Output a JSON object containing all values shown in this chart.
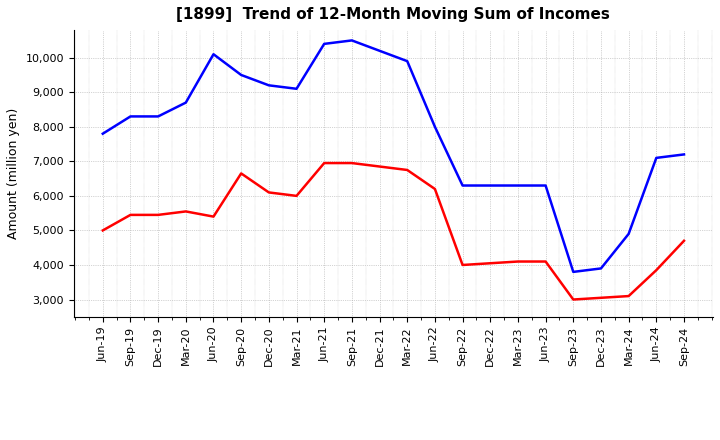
{
  "title": "[1899]  Trend of 12-Month Moving Sum of Incomes",
  "ylabel": "Amount (million yen)",
  "ylim": [
    2500,
    10800
  ],
  "yticks": [
    3000,
    4000,
    5000,
    6000,
    7000,
    8000,
    9000,
    10000
  ],
  "x_labels": [
    "Jun-19",
    "Sep-19",
    "Dec-19",
    "Mar-20",
    "Jun-20",
    "Sep-20",
    "Dec-20",
    "Mar-21",
    "Jun-21",
    "Sep-21",
    "Dec-21",
    "Mar-22",
    "Jun-22",
    "Sep-22",
    "Dec-22",
    "Mar-23",
    "Jun-23",
    "Sep-23",
    "Dec-23",
    "Mar-24",
    "Jun-24",
    "Sep-24"
  ],
  "ordinary_income": [
    7800,
    8300,
    8300,
    8700,
    10100,
    9500,
    9200,
    9100,
    10400,
    10500,
    10200,
    9900,
    8000,
    6300,
    6300,
    6300,
    6300,
    3800,
    3900,
    4900,
    7100,
    7200
  ],
  "net_income": [
    5000,
    5450,
    5450,
    5550,
    5400,
    6650,
    6100,
    6000,
    6950,
    6950,
    6850,
    6750,
    6200,
    4000,
    4050,
    4100,
    4100,
    3000,
    3050,
    3100,
    3850,
    4700
  ],
  "ordinary_income_color": "#0000ff",
  "net_income_color": "#ff0000",
  "line_width": 1.8,
  "background_color": "#ffffff",
  "grid_color": "#aaaaaa",
  "title_fontsize": 11,
  "label_fontsize": 9,
  "tick_fontsize": 8,
  "legend_fontsize": 9
}
